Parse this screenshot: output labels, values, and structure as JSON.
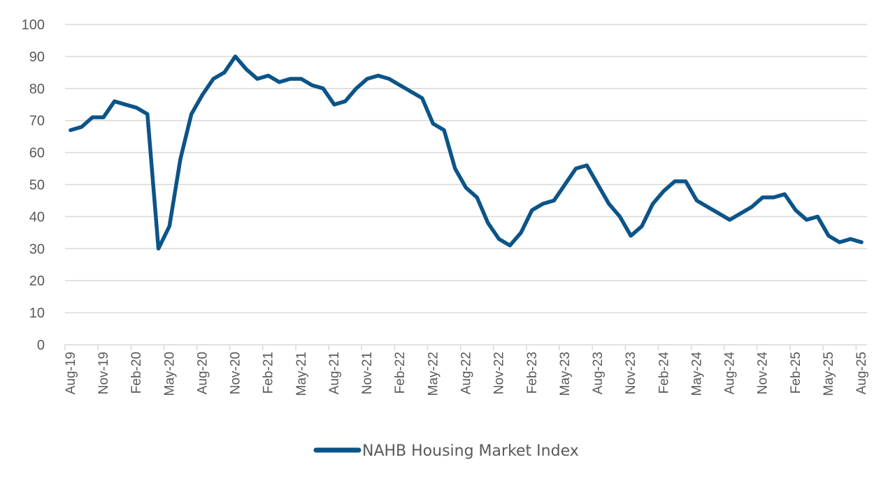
{
  "chart_data": {
    "type": "line",
    "title": "",
    "xlabel": "",
    "ylabel": "",
    "ylim": [
      0,
      100
    ],
    "yticks": [
      0,
      10,
      20,
      30,
      40,
      50,
      60,
      70,
      80,
      90,
      100
    ],
    "grid": true,
    "legend_position": "bottom",
    "line_color": "#0B5488",
    "x": [
      "Aug-19",
      "Sep-19",
      "Oct-19",
      "Nov-19",
      "Dec-19",
      "Jan-20",
      "Feb-20",
      "Mar-20",
      "Apr-20",
      "May-20",
      "Jun-20",
      "Jul-20",
      "Aug-20",
      "Sep-20",
      "Oct-20",
      "Nov-20",
      "Dec-20",
      "Jan-21",
      "Feb-21",
      "Mar-21",
      "Apr-21",
      "May-21",
      "Jun-21",
      "Jul-21",
      "Aug-21",
      "Sep-21",
      "Oct-21",
      "Nov-21",
      "Dec-21",
      "Jan-22",
      "Feb-22",
      "Mar-22",
      "Apr-22",
      "May-22",
      "Jun-22",
      "Jul-22",
      "Aug-22",
      "Sep-22",
      "Oct-22",
      "Nov-22",
      "Dec-22",
      "Jan-23",
      "Feb-23",
      "Mar-23",
      "Apr-23",
      "May-23",
      "Jun-23",
      "Jul-23",
      "Aug-23",
      "Sep-23",
      "Oct-23",
      "Nov-23",
      "Dec-23",
      "Jan-24",
      "Feb-24",
      "Mar-24",
      "Apr-24",
      "May-24",
      "Jun-24",
      "Jul-24",
      "Aug-24",
      "Sep-24",
      "Oct-24",
      "Nov-24",
      "Dec-24",
      "Jan-25",
      "Feb-25",
      "Mar-25",
      "Apr-25",
      "May-25",
      "Jun-25",
      "Jul-25",
      "Aug-25"
    ],
    "xtick_labels": [
      "Aug-19",
      "Nov-19",
      "Feb-20",
      "May-20",
      "Aug-20",
      "Nov-20",
      "Feb-21",
      "May-21",
      "Aug-21",
      "Nov-21",
      "Feb-22",
      "May-22",
      "Aug-22",
      "Nov-22",
      "Feb-23",
      "May-23",
      "Aug-23",
      "Nov-23",
      "Feb-24",
      "May-24",
      "Aug-24",
      "Nov-24",
      "Feb-25",
      "May-25",
      "Aug-25"
    ],
    "series": [
      {
        "name": "NAHB Housing Market Index",
        "values": [
          67,
          68,
          71,
          71,
          76,
          75,
          74,
          72,
          30,
          37,
          58,
          72,
          78,
          83,
          85,
          90,
          86,
          83,
          84,
          82,
          83,
          83,
          81,
          80,
          75,
          76,
          80,
          83,
          84,
          83,
          81,
          79,
          77,
          69,
          67,
          55,
          49,
          46,
          38,
          33,
          31,
          35,
          42,
          44,
          45,
          50,
          55,
          56,
          50,
          44,
          40,
          34,
          37,
          44,
          48,
          51,
          51,
          45,
          43,
          41,
          39,
          41,
          43,
          46,
          46,
          47,
          42,
          39,
          40,
          34,
          32,
          33,
          32
        ]
      }
    ]
  }
}
